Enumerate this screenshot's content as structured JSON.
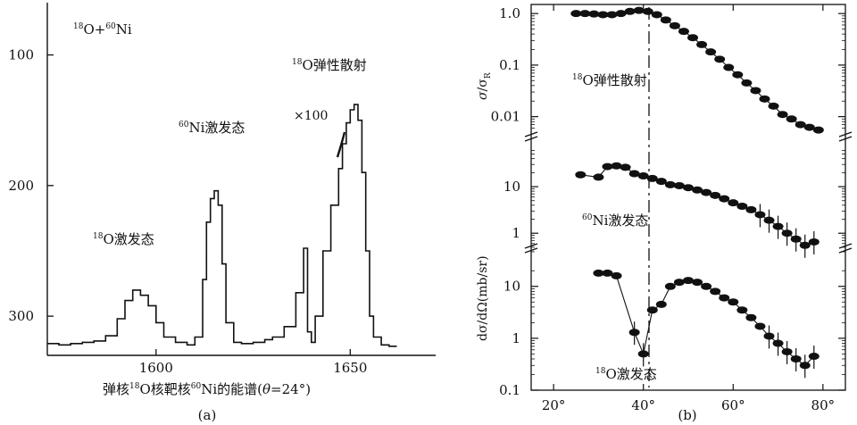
{
  "panel_a": {
    "reaction_mass_a": "18",
    "reaction_core_a": "O+",
    "reaction_mass_b": "60",
    "reaction_core_b": "Ni",
    "label_ni_mass": "60",
    "label_ni_text": "Ni激发态",
    "label_o_mass": "18",
    "label_o_text": "O激发态",
    "label_elastic_mass": "18",
    "label_elastic_text": "O弹性散射",
    "scale_note": "×100",
    "xaxis_pre": "弹核",
    "xaxis_mass1": "18",
    "xaxis_mid": "O核靶核",
    "xaxis_mass2": "60",
    "xaxis_post": "Ni的能谱(",
    "xaxis_theta": "θ",
    "xaxis_end": "=24°)",
    "caption": "(a)",
    "y_ticks": [
      "300",
      "200",
      "100"
    ],
    "x_ticks": [
      "1600",
      "1650"
    ]
  },
  "panel_b": {
    "ylabel_top_sigma": "σ",
    "ylabel_top_mid": "/σ",
    "ylabel_top_sub": "R",
    "ylabel_bottom": "dσ/dΩ(mb/sr)",
    "label_elastic_mass": "18",
    "label_elastic_text": "O弹性散射",
    "label_ni_mass": "60",
    "label_ni_text": "Ni激发态",
    "label_o_mass": "18",
    "label_o_text": "O激发态",
    "caption": "(b)",
    "y_ticks_top": [
      "1.0",
      "0.1",
      "0.01"
    ],
    "y_ticks_mid": [
      "10",
      "1"
    ],
    "y_ticks_bot": [
      "10",
      "1",
      "0.1"
    ],
    "x_ticks": [
      "20°",
      "40°",
      "60°",
      "80°"
    ]
  },
  "chart_data": [
    {
      "type": "line",
      "title": "",
      "xlabel": "弹核18O核靶核60Ni的能谱(θ=24°)",
      "ylabel": "",
      "xlim": [
        1572,
        1672
      ],
      "ylim": [
        70,
        340
      ],
      "x_ticks": [
        1600,
        1650
      ],
      "y_ticks": [
        100,
        200,
        300
      ],
      "grid": false,
      "annotations": [
        "18O+60Ni",
        "18O激发态",
        "60Ni激发态",
        "18O弹性散射",
        "×100"
      ],
      "series": [
        {
          "x": [
            1572,
            1575,
            1578,
            1581,
            1584,
            1587,
            1590,
            1592,
            1594,
            1596,
            1598,
            1600,
            1602,
            1605,
            1608,
            1610,
            1612,
            1613,
            1614,
            1615,
            1616,
            1617,
            1618,
            1620,
            1622,
            1625,
            1628,
            1630,
            1633,
            1636,
            1638,
            1639,
            1640,
            1641,
            1643,
            1645,
            1647,
            1648,
            1649,
            1650,
            1651,
            1652,
            1653,
            1654,
            1655,
            1656,
            1658,
            1660,
            1662
          ],
          "values": [
            79,
            78,
            79,
            80,
            81,
            85,
            98,
            112,
            120,
            116,
            108,
            95,
            84,
            80,
            78,
            84,
            128,
            172,
            190,
            196,
            185,
            140,
            95,
            80,
            79,
            80,
            82,
            84,
            92,
            118,
            152,
            88,
            80,
            100,
            150,
            185,
            213,
            232,
            248,
            258,
            262,
            250,
            210,
            150,
            100,
            84,
            78,
            77,
            77
          ]
        }
      ]
    },
    {
      "type": "scatter",
      "title": "",
      "xlabel": "",
      "ylabel": "σ/σR",
      "xlim": [
        15,
        85
      ],
      "ylim": [
        0.005,
        1.5
      ],
      "log_y": true,
      "x_ticks": [
        "20°",
        "40°",
        "60°",
        "80°"
      ],
      "y_ticks": [
        "1.0",
        "0.1",
        "0.01"
      ],
      "annotations": [
        "18O弹性散射"
      ],
      "series": [
        {
          "x": [
            25,
            27,
            29,
            31,
            33,
            35,
            37,
            39,
            41,
            43,
            45,
            47,
            49,
            51,
            53,
            55,
            57,
            59,
            61,
            63,
            65,
            67,
            69,
            71,
            73,
            75,
            77,
            79
          ],
          "values": [
            1.0,
            1.0,
            0.98,
            0.95,
            0.95,
            1.0,
            1.1,
            1.15,
            1.1,
            0.95,
            0.75,
            0.58,
            0.45,
            0.34,
            0.25,
            0.18,
            0.13,
            0.09,
            0.065,
            0.045,
            0.032,
            0.022,
            0.016,
            0.011,
            0.009,
            0.007,
            0.0062,
            0.0055
          ]
        }
      ]
    },
    {
      "type": "scatter",
      "title": "",
      "xlabel": "",
      "ylabel": "dσ/dΩ(mb/sr)",
      "xlim": [
        15,
        85
      ],
      "ylim": [
        0.35,
        70
      ],
      "log_y": true,
      "x_ticks": [
        "20°",
        "40°",
        "60°",
        "80°"
      ],
      "y_ticks": [
        "10",
        "1"
      ],
      "annotations": [
        "60Ni激发态"
      ],
      "series": [
        {
          "x": [
            26,
            30,
            32,
            34,
            36,
            38,
            40,
            42,
            44,
            46,
            48,
            50,
            52,
            54,
            56,
            58,
            60,
            62,
            64,
            66,
            68,
            70,
            72,
            74,
            76,
            78
          ],
          "values": [
            18,
            16,
            27,
            28,
            26,
            19,
            17,
            15,
            13,
            11,
            10.5,
            9.5,
            8.5,
            7.5,
            6.5,
            5.5,
            4.5,
            3.8,
            3.2,
            2.5,
            1.9,
            1.4,
            1.0,
            0.75,
            0.55,
            0.65
          ]
        }
      ]
    },
    {
      "type": "scatter",
      "title": "",
      "xlabel": "",
      "ylabel": "dσ/dΩ(mb/sr)",
      "xlim": [
        15,
        85
      ],
      "ylim": [
        0.1,
        30
      ],
      "log_y": true,
      "x_ticks": [
        "20°",
        "40°",
        "60°",
        "80°"
      ],
      "y_ticks": [
        "10",
        "1",
        "0.1"
      ],
      "annotations": [
        "18O激发态"
      ],
      "series": [
        {
          "x": [
            30,
            32,
            34,
            38,
            40,
            42,
            44,
            46,
            48,
            50,
            52,
            54,
            56,
            58,
            60,
            62,
            64,
            66,
            68,
            70,
            72,
            74,
            76,
            78
          ],
          "values": [
            18,
            18,
            16,
            1.3,
            0.5,
            3.5,
            4.5,
            10,
            12,
            13,
            12,
            10,
            8,
            6,
            5,
            3.5,
            2.5,
            1.7,
            1.1,
            0.8,
            0.55,
            0.4,
            0.3,
            0.45
          ]
        }
      ]
    }
  ]
}
